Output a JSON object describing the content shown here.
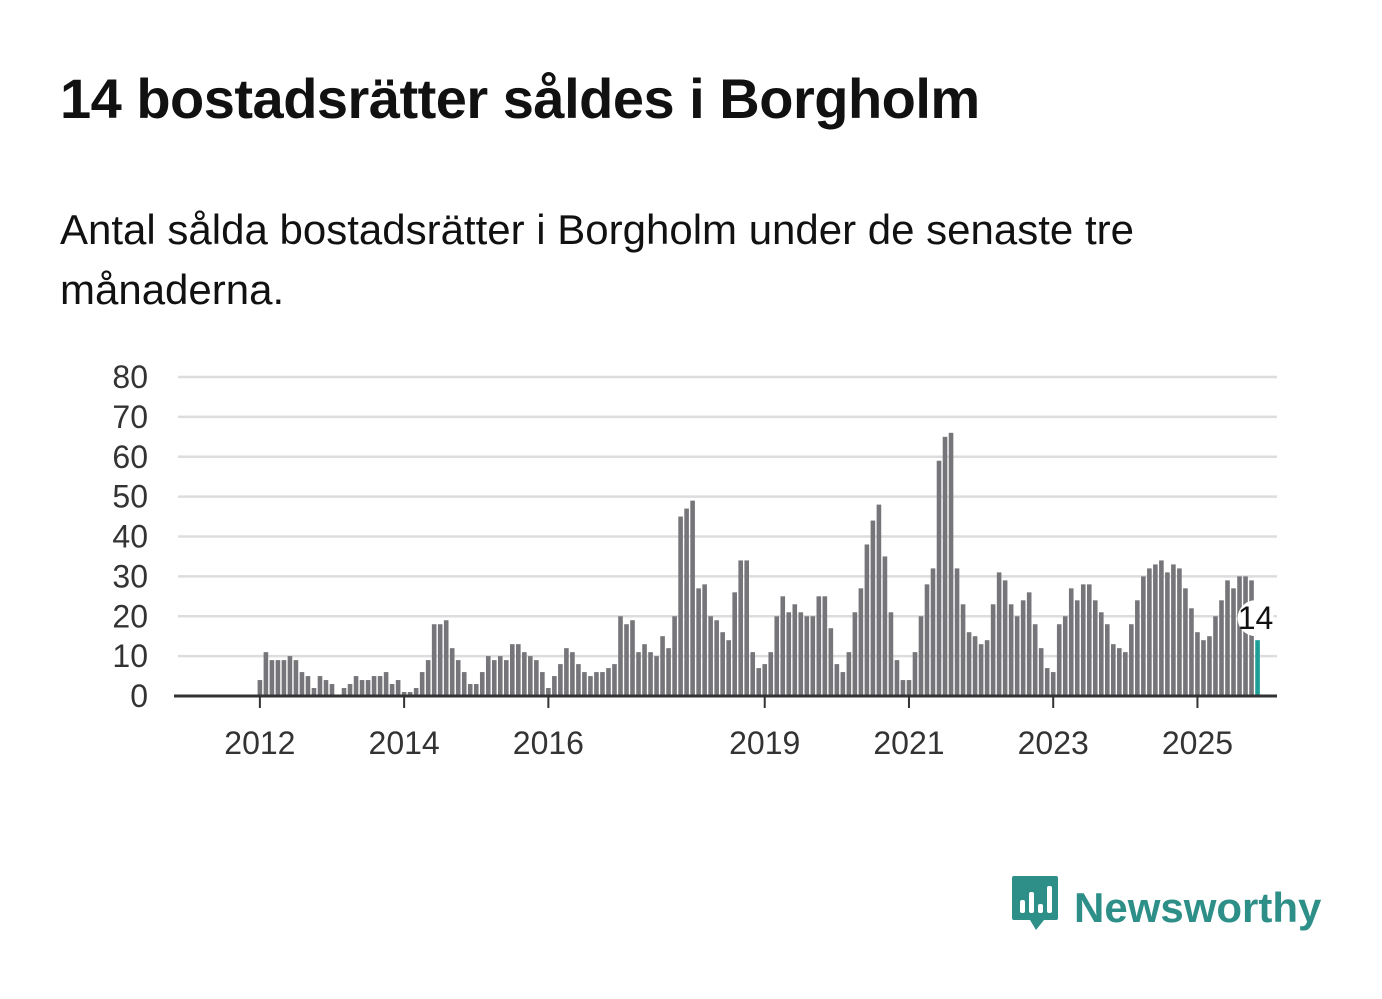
{
  "title": "14 bostadsrätter såldes i Borgholm",
  "subtitle": "Antal sålda bostadsrätter i Borgholm under de senaste tre månaderna.",
  "brand": {
    "name": "Newsworthy",
    "icon": "newsworthy-logo-icon",
    "color": "#2e8f88"
  },
  "colors": {
    "bar": "#76767a",
    "highlight": "#1d9e97",
    "grid": "#dddddd",
    "axis": "#333333"
  },
  "chart_data": {
    "type": "bar",
    "title": "14 bostadsrätter såldes i Borgholm",
    "xlabel": "",
    "ylabel": "",
    "ylim": [
      0,
      80
    ],
    "yticks": [
      "0",
      "10",
      "20",
      "30",
      "40",
      "50",
      "60",
      "70",
      "80"
    ],
    "x_start": "2011-04",
    "xtick_labels": [
      {
        "label": "2012",
        "index": 9
      },
      {
        "label": "2014",
        "index": 33
      },
      {
        "label": "2016",
        "index": 57
      },
      {
        "label": "2019",
        "index": 93
      },
      {
        "label": "2021",
        "index": 117
      },
      {
        "label": "2023",
        "index": 141
      },
      {
        "label": "2025",
        "index": 165
      }
    ],
    "values": [
      0,
      0,
      0,
      0,
      0,
      0,
      0,
      0,
      0,
      4,
      11,
      9,
      9,
      9,
      10,
      9,
      6,
      5,
      2,
      5,
      4,
      3,
      0,
      2,
      3,
      5,
      4,
      4,
      5,
      5,
      6,
      3,
      4,
      1,
      1,
      2,
      6,
      9,
      18,
      18,
      19,
      12,
      9,
      6,
      3,
      3,
      6,
      10,
      9,
      10,
      9,
      13,
      13,
      11,
      10,
      9,
      6,
      2,
      5,
      8,
      12,
      11,
      8,
      6,
      5,
      6,
      6,
      7,
      8,
      20,
      18,
      19,
      11,
      13,
      11,
      10,
      15,
      12,
      20,
      45,
      47,
      49,
      27,
      28,
      20,
      19,
      16,
      14,
      26,
      34,
      34,
      11,
      7,
      8,
      11,
      20,
      25,
      21,
      23,
      21,
      20,
      20,
      25,
      25,
      17,
      8,
      6,
      11,
      21,
      27,
      38,
      44,
      48,
      35,
      21,
      9,
      4,
      4,
      11,
      20,
      28,
      32,
      59,
      65,
      66,
      32,
      23,
      16,
      15,
      13,
      14,
      23,
      31,
      29,
      23,
      20,
      24,
      26,
      18,
      12,
      7,
      6,
      18,
      20,
      27,
      24,
      28,
      28,
      24,
      21,
      18,
      13,
      12,
      11,
      18,
      24,
      30,
      32,
      33,
      34,
      31,
      33,
      32,
      27,
      22,
      16,
      14,
      15,
      20,
      24,
      29,
      27,
      30,
      30,
      29,
      14
    ],
    "highlight_last": true,
    "annotation": "14"
  }
}
